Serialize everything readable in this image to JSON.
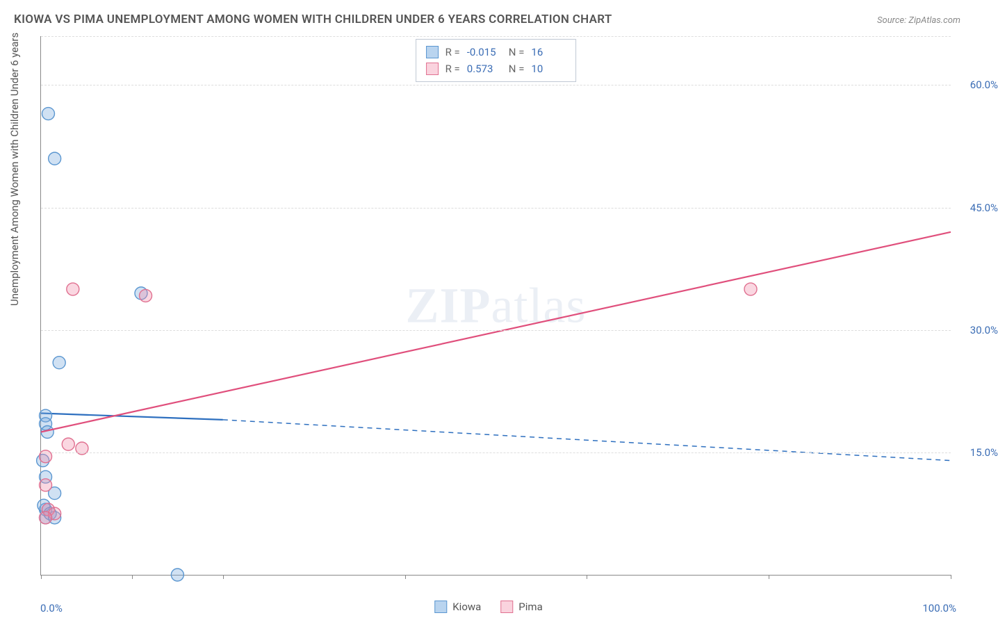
{
  "title": "KIOWA VS PIMA UNEMPLOYMENT AMONG WOMEN WITH CHILDREN UNDER 6 YEARS CORRELATION CHART",
  "source": "Source: ZipAtlas.com",
  "watermark": {
    "part1": "ZIP",
    "part2": "atlas"
  },
  "y_axis_title": "Unemployment Among Women with Children Under 6 years",
  "chart": {
    "type": "scatter",
    "background_color": "#ffffff",
    "grid_color": "#dddddd",
    "axis_color": "#888888",
    "xlim": [
      0,
      100
    ],
    "ylim": [
      0,
      66
    ],
    "x_ticks": [
      0,
      10,
      20,
      40,
      60,
      80,
      100
    ],
    "x_tick_labels_shown": {
      "left": "0.0%",
      "right": "100.0%"
    },
    "y_gridlines": [
      15,
      30,
      45,
      60,
      66
    ],
    "y_tick_labels": {
      "15": "15.0%",
      "30": "30.0%",
      "45": "45.0%",
      "60": "60.0%"
    },
    "label_color": "#3b6db5",
    "label_fontsize": 15,
    "title_fontsize": 17,
    "title_color": "#555555",
    "marker_radius": 9,
    "marker_stroke_width": 1.4,
    "series": [
      {
        "name": "Kiowa",
        "fill": "rgba(120,170,220,0.35)",
        "stroke": "#5a96d0",
        "points": [
          {
            "x": 0.8,
            "y": 56.5
          },
          {
            "x": 1.5,
            "y": 51.0
          },
          {
            "x": 11.0,
            "y": 34.5
          },
          {
            "x": 2.0,
            "y": 26.0
          },
          {
            "x": 0.5,
            "y": 19.5
          },
          {
            "x": 0.5,
            "y": 18.5
          },
          {
            "x": 0.2,
            "y": 14.0
          },
          {
            "x": 0.5,
            "y": 12.0
          },
          {
            "x": 1.5,
            "y": 10.0
          },
          {
            "x": 0.5,
            "y": 8.0
          },
          {
            "x": 0.3,
            "y": 8.5
          },
          {
            "x": 0.5,
            "y": 7.0
          },
          {
            "x": 1.0,
            "y": 7.5
          },
          {
            "x": 1.5,
            "y": 7.0
          },
          {
            "x": 0.7,
            "y": 17.5
          },
          {
            "x": 15.0,
            "y": 0.0
          }
        ],
        "trend": {
          "solid_from": {
            "x": 0,
            "y": 19.8
          },
          "solid_to": {
            "x": 20,
            "y": 19.0
          },
          "dash_to": {
            "x": 100,
            "y": 14.0
          },
          "color": "#2d6fbf",
          "width": 2.2
        }
      },
      {
        "name": "Pima",
        "fill": "rgba(240,140,170,0.35)",
        "stroke": "#e07090",
        "points": [
          {
            "x": 3.5,
            "y": 35.0
          },
          {
            "x": 11.5,
            "y": 34.2
          },
          {
            "x": 78.0,
            "y": 35.0
          },
          {
            "x": 3.0,
            "y": 16.0
          },
          {
            "x": 4.5,
            "y": 15.5
          },
          {
            "x": 0.5,
            "y": 14.5
          },
          {
            "x": 0.5,
            "y": 11.0
          },
          {
            "x": 0.8,
            "y": 8.0
          },
          {
            "x": 1.5,
            "y": 7.5
          },
          {
            "x": 0.5,
            "y": 7.0
          }
        ],
        "trend": {
          "solid_from": {
            "x": 0,
            "y": 17.5
          },
          "solid_to": {
            "x": 100,
            "y": 42.0
          },
          "color": "#e04f7c",
          "width": 2.2
        }
      }
    ],
    "stats_legend": [
      {
        "swatch": "blue",
        "R": "-0.015",
        "N": "16"
      },
      {
        "swatch": "pink",
        "R": "0.573",
        "N": "10"
      }
    ],
    "bottom_legend": [
      {
        "swatch": "blue",
        "label": "Kiowa"
      },
      {
        "swatch": "pink",
        "label": "Pima"
      }
    ]
  }
}
